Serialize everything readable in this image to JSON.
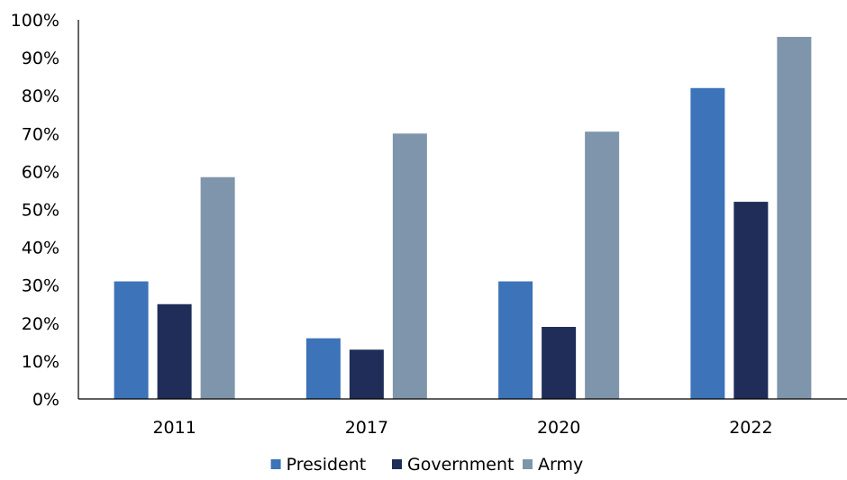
{
  "chart_data": {
    "type": "bar",
    "categories": [
      "2011",
      "2017",
      "2020",
      "2022"
    ],
    "series": [
      {
        "name": "President",
        "values": [
          31,
          16,
          31,
          82
        ],
        "color": "#3d73b9"
      },
      {
        "name": "Government",
        "values": [
          25,
          13,
          19,
          52
        ],
        "color": "#1f2d58"
      },
      {
        "name": "Army",
        "values": [
          58.5,
          70,
          70.5,
          95.5
        ],
        "color": "#7f95ab"
      }
    ],
    "y_ticks": [
      "0%",
      "10%",
      "20%",
      "30%",
      "40%",
      "50%",
      "60%",
      "70%",
      "80%",
      "90%",
      "100%"
    ],
    "ylim": [
      0,
      100
    ],
    "grid": false,
    "legend_position": "bottom"
  }
}
